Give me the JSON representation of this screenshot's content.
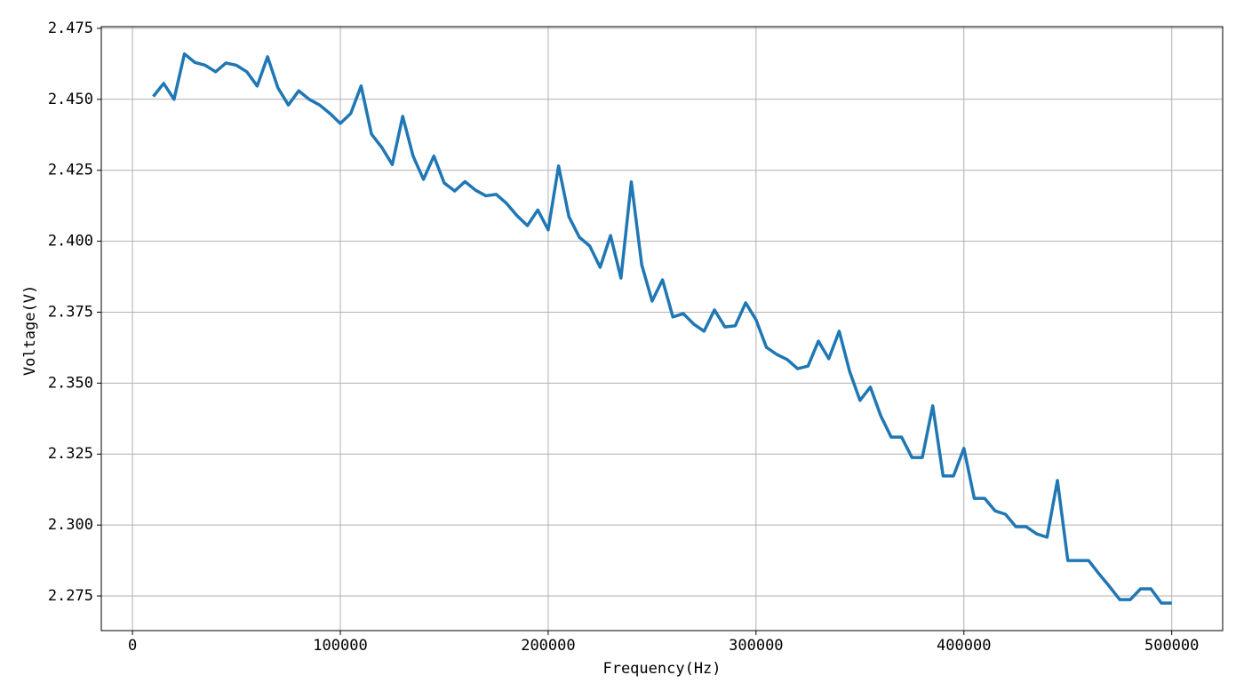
{
  "chart_data": {
    "type": "line",
    "xlabel": "Frequency(Hz)",
    "ylabel": "Voltage(V)",
    "x": [
      10000,
      15000,
      20000,
      25000,
      30000,
      35000,
      40000,
      45000,
      50000,
      55000,
      60000,
      65000,
      70000,
      75000,
      80000,
      85000,
      90000,
      95000,
      100000,
      105000,
      110000,
      115000,
      120000,
      125000,
      130000,
      135000,
      140000,
      145000,
      150000,
      155000,
      160000,
      165000,
      170000,
      175000,
      180000,
      185000,
      190000,
      195000,
      200000,
      205000,
      210000,
      215000,
      220000,
      225000,
      230000,
      235000,
      240000,
      245000,
      250000,
      255000,
      260000,
      265000,
      270000,
      275000,
      280000,
      285000,
      290000,
      295000,
      300000,
      305000,
      310000,
      315000,
      320000,
      325000,
      330000,
      335000,
      340000,
      345000,
      350000,
      355000,
      360000,
      365000,
      370000,
      375000,
      380000,
      385000,
      390000,
      395000,
      400000,
      405000,
      410000,
      415000,
      420000,
      425000,
      430000,
      435000,
      440000,
      445000,
      450000,
      455000,
      460000,
      465000,
      470000,
      475000,
      480000,
      485000,
      490000,
      495000,
      500000
    ],
    "series": [
      {
        "color": "#1f77b4",
        "values": [
          2.451,
          2.4556,
          2.45,
          2.466,
          2.463,
          2.462,
          2.4597,
          2.4628,
          2.462,
          2.4597,
          2.4547,
          2.465,
          2.454,
          2.448,
          2.453,
          2.45,
          2.448,
          2.445,
          2.4415,
          2.445,
          2.4547,
          2.4377,
          2.433,
          2.427,
          2.444,
          2.43,
          2.4218,
          2.43,
          2.4205,
          2.4177,
          2.421,
          2.418,
          2.416,
          2.4165,
          2.4133,
          2.409,
          2.4055,
          2.411,
          2.404,
          2.4265,
          2.4086,
          2.4014,
          2.3983,
          2.3908,
          2.402,
          2.387,
          2.4209,
          2.3917,
          2.3789,
          2.3864,
          2.3733,
          2.3745,
          2.3708,
          2.3683,
          2.3758,
          2.3698,
          2.3702,
          2.3783,
          2.3723,
          2.3626,
          2.3601,
          2.3583,
          2.3551,
          2.356,
          2.3648,
          2.3586,
          2.3683,
          2.3542,
          2.3439,
          2.3486,
          2.3385,
          2.331,
          2.331,
          2.3238,
          2.3238,
          2.342,
          2.3173,
          2.3173,
          2.327,
          2.3094,
          2.3094,
          2.305,
          2.3038,
          2.2994,
          2.2994,
          2.2969,
          2.2957,
          2.3157,
          2.2875,
          2.2875,
          2.2875,
          2.2828,
          2.2784,
          2.2737,
          2.2737,
          2.2775,
          2.2775,
          2.2725,
          2.2725
        ]
      }
    ],
    "xlim": [
      -15000,
      524500
    ],
    "ylim": [
      2.2628,
      2.4756
    ],
    "xticks": [
      0,
      100000,
      200000,
      300000,
      400000,
      500000
    ],
    "yticks": [
      {
        "value": 2.275,
        "label": "2.275"
      },
      {
        "value": 2.3,
        "label": "2.300"
      },
      {
        "value": 2.325,
        "label": "2.325"
      },
      {
        "value": 2.35,
        "label": "2.350"
      },
      {
        "value": 2.375,
        "label": "2.375"
      },
      {
        "value": 2.4,
        "label": "2.400"
      },
      {
        "value": 2.425,
        "label": "2.425"
      },
      {
        "value": 2.45,
        "label": "2.450"
      },
      {
        "value": 2.475,
        "label": "2.475"
      }
    ],
    "grid": true
  }
}
